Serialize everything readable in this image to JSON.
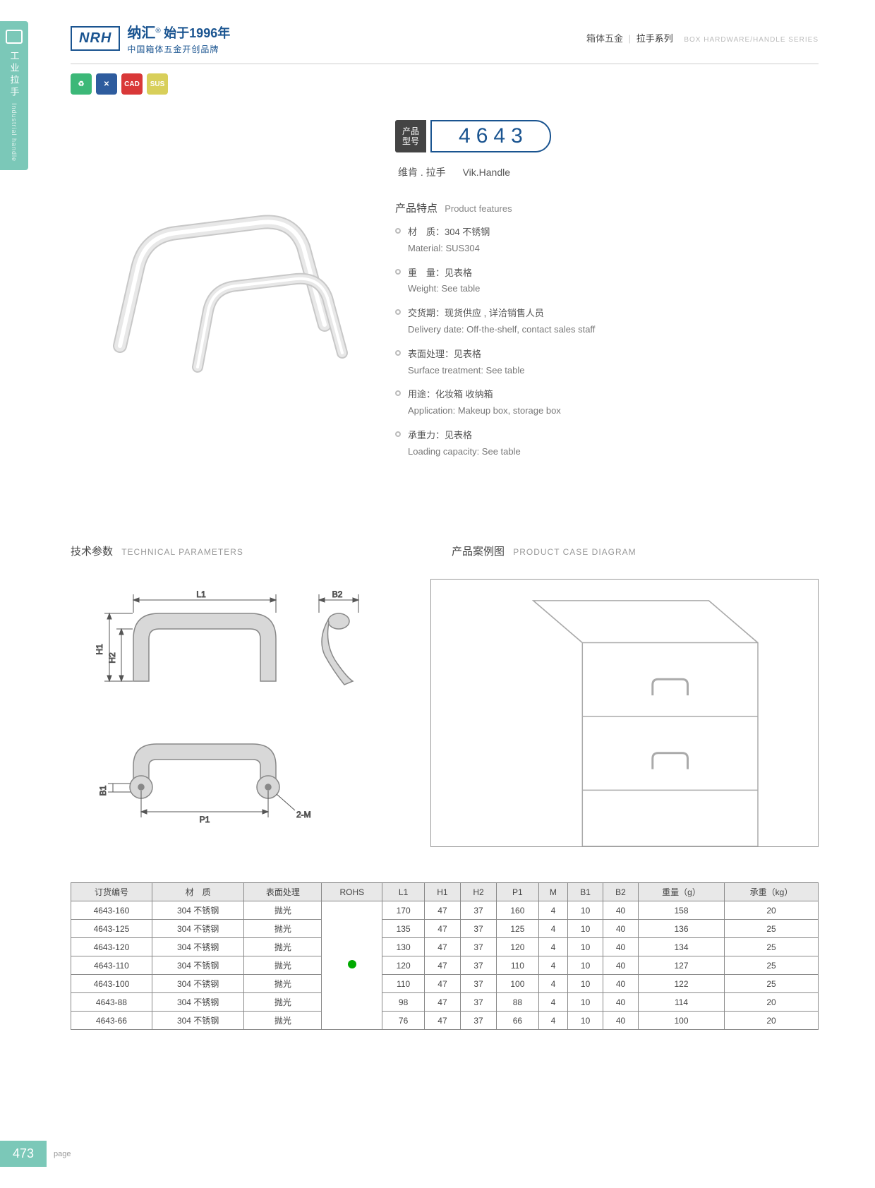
{
  "sidebar": {
    "text_cn": "工业拉手",
    "text_en": "Industrial handle"
  },
  "header": {
    "logo": "NRH",
    "brand_cn": "纳汇",
    "brand_year": "始于1996年",
    "brand_sub": "中国箱体五金开创品牌",
    "right_cn1": "箱体五金",
    "right_cn2": "拉手系列",
    "right_en": "BOX HARDWARE/HANDLE SERIES"
  },
  "badges": [
    {
      "bg": "#3cb878",
      "label": "♻"
    },
    {
      "bg": "#2e5c9e",
      "label": "✕"
    },
    {
      "bg": "#d93838",
      "label": "CAD"
    },
    {
      "bg": "#d8cf5a",
      "label": "SUS"
    }
  ],
  "model": {
    "label_l1": "产品",
    "label_l2": "型号",
    "number": "4643",
    "name_cn": "维肯 . 拉手",
    "name_en": "Vik.Handle"
  },
  "features": {
    "title_cn": "产品特点",
    "title_en": "Product features",
    "items": [
      {
        "cn": "材　质：304 不锈钢",
        "en": "Material: SUS304"
      },
      {
        "cn": "重　量：见表格",
        "en": "Weight: See table"
      },
      {
        "cn": "交货期：现货供应 , 详洽销售人员",
        "en": "Delivery date: Off-the-shelf, contact sales staff"
      },
      {
        "cn": "表面处理：见表格",
        "en": "Surface treatment: See table"
      },
      {
        "cn": "用途：化妆箱 收纳箱",
        "en": "Application: Makeup box, storage box"
      },
      {
        "cn": "承重力：见表格",
        "en": "Loading capacity: See table"
      }
    ]
  },
  "sections": {
    "tech_cn": "技术参数",
    "tech_en": "TECHNICAL PARAMETERS",
    "case_cn": "产品案例图",
    "case_en": "PRODUCT CASE DIAGRAM"
  },
  "diagram_labels": {
    "L1": "L1",
    "B2": "B2",
    "H1": "H1",
    "H2": "H2",
    "B1": "B1",
    "P1": "P1",
    "M": "2-M"
  },
  "table": {
    "headers": [
      "订货编号",
      "材　质",
      "表面处理",
      "ROHS",
      "L1",
      "H1",
      "H2",
      "P1",
      "M",
      "B1",
      "B2",
      "重量（g）",
      "承重（kg）"
    ],
    "rows": [
      [
        "4643-160",
        "304 不锈钢",
        "抛光",
        "",
        "170",
        "47",
        "37",
        "160",
        "4",
        "10",
        "40",
        "158",
        "20"
      ],
      [
        "4643-125",
        "304 不锈钢",
        "抛光",
        "",
        "135",
        "47",
        "37",
        "125",
        "4",
        "10",
        "40",
        "136",
        "25"
      ],
      [
        "4643-120",
        "304 不锈钢",
        "抛光",
        "",
        "130",
        "47",
        "37",
        "120",
        "4",
        "10",
        "40",
        "134",
        "25"
      ],
      [
        "4643-110",
        "304 不锈钢",
        "抛光",
        "",
        "120",
        "47",
        "37",
        "110",
        "4",
        "10",
        "40",
        "127",
        "25"
      ],
      [
        "4643-100",
        "304 不锈钢",
        "抛光",
        "",
        "110",
        "47",
        "37",
        "100",
        "4",
        "10",
        "40",
        "122",
        "25"
      ],
      [
        "4643-88",
        "304 不锈钢",
        "抛光",
        "",
        "98",
        "47",
        "37",
        "88",
        "4",
        "10",
        "40",
        "114",
        "20"
      ],
      [
        "4643-66",
        "304 不锈钢",
        "抛光",
        "",
        "76",
        "47",
        "37",
        "66",
        "4",
        "10",
        "40",
        "100",
        "20"
      ]
    ]
  },
  "footer": {
    "page": "473",
    "label": "page"
  },
  "colors": {
    "teal": "#7bc8b8",
    "navy": "#1a5490",
    "gray_line": "#999999",
    "handle_fill": "#d8d8d8",
    "handle_stroke": "#888888"
  }
}
